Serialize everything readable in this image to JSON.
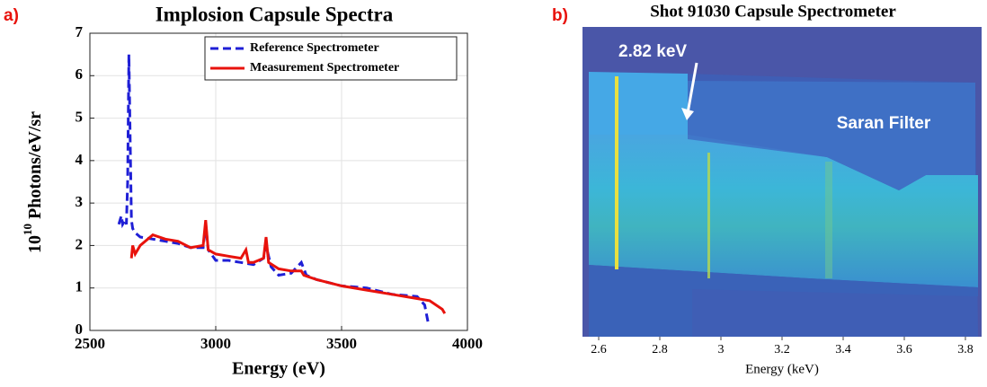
{
  "chart_data": [
    {
      "type": "line",
      "panel_label": "a)",
      "title": "Implosion Capsule Spectra",
      "x_label": "Energy (eV)",
      "y_label": {
        "base": "10",
        "exponent": "10",
        "unit": "Photons/eV/sr"
      },
      "xlim": [
        2500,
        4000
      ],
      "xticks": [
        2500,
        3000,
        3500,
        4000
      ],
      "ylim": [
        0,
        7
      ],
      "yticks": [
        0,
        1,
        2,
        3,
        4,
        5,
        6,
        7
      ],
      "grid": true,
      "legend": "upper right",
      "series": [
        {
          "name": "Reference Spectrometer",
          "color": "#1f1fd6",
          "dash": true,
          "x": [
            2615,
            2625,
            2630,
            2640,
            2645,
            2650,
            2655,
            2660,
            2665,
            2670,
            2680,
            2700,
            2750,
            2800,
            2850,
            2900,
            2950,
            2960,
            2970,
            3000,
            3050,
            3100,
            3150,
            3190,
            3200,
            3220,
            3250,
            3300,
            3340,
            3360,
            3400,
            3500,
            3600,
            3700,
            3800,
            3830,
            3840,
            3845
          ],
          "values": [
            2.5,
            2.7,
            2.5,
            2.6,
            2.5,
            3.5,
            6.5,
            4.5,
            2.6,
            2.4,
            2.3,
            2.2,
            2.15,
            2.1,
            2.05,
            1.95,
            1.95,
            2.5,
            1.9,
            1.65,
            1.65,
            1.6,
            1.55,
            1.7,
            2.0,
            1.5,
            1.3,
            1.35,
            1.6,
            1.3,
            1.2,
            1.05,
            1.0,
            0.85,
            0.8,
            0.6,
            0.3,
            0.15
          ]
        },
        {
          "name": "Measurement Spectrometer",
          "color": "#e8120c",
          "dash": false,
          "x": [
            2665,
            2670,
            2680,
            2700,
            2750,
            2800,
            2850,
            2900,
            2950,
            2960,
            2970,
            3000,
            3050,
            3100,
            3120,
            3130,
            3150,
            3190,
            3200,
            3210,
            3250,
            3300,
            3340,
            3350,
            3400,
            3500,
            3600,
            3700,
            3800,
            3850,
            3900,
            3910
          ],
          "values": [
            1.7,
            2.0,
            1.8,
            2.0,
            2.25,
            2.15,
            2.1,
            1.95,
            2.0,
            2.6,
            1.9,
            1.8,
            1.75,
            1.7,
            1.9,
            1.6,
            1.6,
            1.7,
            2.2,
            1.6,
            1.45,
            1.4,
            1.4,
            1.3,
            1.2,
            1.05,
            0.95,
            0.85,
            0.75,
            0.7,
            0.5,
            0.4
          ]
        }
      ]
    },
    {
      "type": "image",
      "panel_label": "b)",
      "title": "Shot 91030 Capsule Spectrometer",
      "x_label": "Energy (keV)",
      "xlim": [
        2.547,
        3.853
      ],
      "xticks": [
        2.6,
        2.8,
        3,
        3.2,
        3.4,
        3.6,
        3.8
      ],
      "annotations": [
        "2.82 keV",
        "Saran Filter"
      ]
    }
  ]
}
